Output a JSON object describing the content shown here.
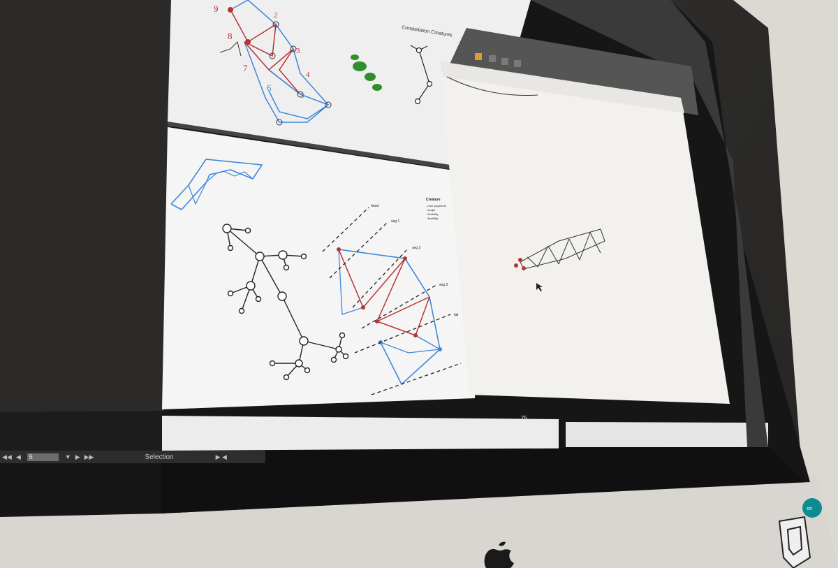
{
  "canvas_artboard": {
    "heading": "Constellation Creatures"
  },
  "creature_panel": {
    "label": "Creature",
    "attributes": [
      "- num segments",
      "- length",
      "- flexibility",
      "- flexibility"
    ]
  },
  "segment_callouts": [
    "head",
    "seg 1",
    "seg 2",
    "seg 3",
    "tail"
  ],
  "sketch_numbers": [
    "9",
    "8",
    "7",
    "6",
    "2",
    "3",
    "4",
    "5"
  ],
  "status_bar": {
    "page_value": "5",
    "mode": "Selection",
    "first_icon": "first-page-icon",
    "prev_icon": "prev-page-icon",
    "next_icon": "next-page-icon",
    "last_icon": "last-page-icon"
  },
  "preview_window": {
    "bottom_value": "75"
  },
  "colors": {
    "blue": "#3f86d8",
    "red": "#b83334",
    "green": "#2f8f2a",
    "black": "#222222"
  }
}
